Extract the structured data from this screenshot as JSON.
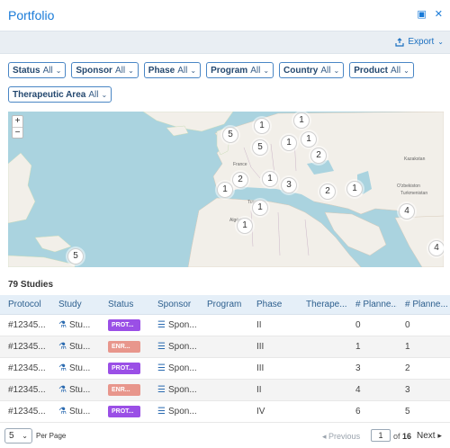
{
  "header": {
    "title": "Portfolio"
  },
  "toolbar": {
    "export_label": "Export"
  },
  "filters": [
    {
      "label": "Status",
      "value": "All"
    },
    {
      "label": "Sponsor",
      "value": "All"
    },
    {
      "label": "Phase",
      "value": "All"
    },
    {
      "label": "Program",
      "value": "All"
    },
    {
      "label": "Country",
      "value": "All"
    },
    {
      "label": "Product",
      "value": "All"
    },
    {
      "label": "Therapeutic Area",
      "value": "All"
    }
  ],
  "map": {
    "zoom_in": "+",
    "zoom_out": "−",
    "clusters": [
      "1",
      "1",
      "5",
      "5",
      "1",
      "1",
      "2",
      "1",
      "2",
      "1",
      "3",
      "2",
      "1",
      "1",
      "4",
      "1",
      "4",
      "5"
    ],
    "labels": [
      "France",
      "Algérie",
      "Tunisie",
      "Kazakstan",
      "O'zbekiston",
      "Turkmenistan"
    ]
  },
  "study_count": "79 Studies",
  "table": {
    "columns": [
      "Protocol",
      "Study",
      "Status",
      "Sponsor",
      "Program",
      "Phase",
      "Therape...",
      "# Planne...",
      "# Planne..."
    ],
    "rows": [
      {
        "protocol": "#12345...",
        "study": "Stu...",
        "status": "PROT...",
        "sponsor": "Spon...",
        "program": "",
        "phase": "II",
        "therapeutic": "",
        "planned1": "0",
        "planned2": "0"
      },
      {
        "protocol": "#12345...",
        "study": "Stu...",
        "status": "ENR...",
        "sponsor": "Spon...",
        "program": "",
        "phase": "III",
        "therapeutic": "",
        "planned1": "1",
        "planned2": "1"
      },
      {
        "protocol": "#12345...",
        "study": "Stu...",
        "status": "PROT...",
        "sponsor": "Spon...",
        "program": "",
        "phase": "III",
        "therapeutic": "",
        "planned1": "3",
        "planned2": "2"
      },
      {
        "protocol": "#12345...",
        "study": "Stu...",
        "status": "ENR...",
        "sponsor": "Spon...",
        "program": "",
        "phase": "II",
        "therapeutic": "",
        "planned1": "4",
        "planned2": "3"
      },
      {
        "protocol": "#12345...",
        "study": "Stu...",
        "status": "PROT...",
        "sponsor": "Spon...",
        "program": "",
        "phase": "IV",
        "therapeutic": "",
        "planned1": "6",
        "planned2": "5"
      }
    ]
  },
  "pagination": {
    "per_page_value": "5",
    "per_page_label": "Per Page",
    "previous_label": "Previous",
    "current_page": "1",
    "of_label": "of",
    "total_pages": "16",
    "next_label": "Next"
  },
  "colors": {
    "accent": "#1a7bd8",
    "protocol_badge": "#9a4fe6",
    "enrolling_badge": "#e8968c",
    "header_bg": "#e5eff8"
  }
}
